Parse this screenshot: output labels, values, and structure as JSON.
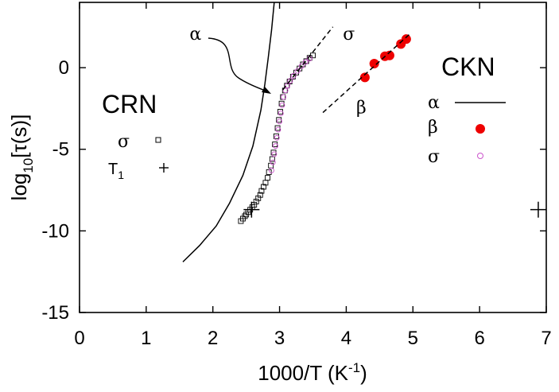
{
  "chart_data": {
    "type": "scatter",
    "xlabel_main": "1000/T (K",
    "xlabel_sup": "-1",
    "xlabel_close": ")",
    "ylabel_main": "log",
    "ylabel_sub": "10",
    "ylabel_rest": "[τ(s)]",
    "xlim": [
      0,
      7
    ],
    "ylim": [
      -15,
      4
    ],
    "xticks": [
      "0",
      "1",
      "2",
      "3",
      "4",
      "5",
      "6",
      "7"
    ],
    "yticks": [
      "0",
      "-5",
      "-10",
      "-15"
    ],
    "ytick_values": [
      0,
      -5,
      -10,
      -15
    ],
    "groups": {
      "CRN": {
        "label": "CRN",
        "legend": [
          {
            "label": "σ",
            "marker": "open-square",
            "color": "#000000"
          },
          {
            "label": "T",
            "sub": "1",
            "marker": "plus",
            "color": "#000000"
          }
        ]
      },
      "CKN": {
        "label": "CKN",
        "legend": [
          {
            "label": "α",
            "marker": "line",
            "color": "#000000"
          },
          {
            "label": "β",
            "marker": "filled-circle",
            "color": "#ee0000"
          },
          {
            "label": "σ",
            "marker": "open-circle",
            "color": "#cc55cc"
          }
        ]
      }
    },
    "annotations": [
      {
        "text": "α",
        "x": 1.65,
        "y": 1.7
      },
      {
        "text": "σ",
        "x": 3.95,
        "y": 1.7
      },
      {
        "text": "β",
        "x": 4.15,
        "y": -2.8
      }
    ],
    "series": [
      {
        "name": "CKN α",
        "kind": "line",
        "color": "#000000",
        "points": [
          [
            1.55,
            -11.9
          ],
          [
            1.8,
            -10.9
          ],
          [
            2.05,
            -9.7
          ],
          [
            2.25,
            -8.3
          ],
          [
            2.45,
            -6.6
          ],
          [
            2.6,
            -4.8
          ],
          [
            2.72,
            -2.6
          ],
          [
            2.78,
            -1.0
          ],
          [
            2.83,
            0.6
          ],
          [
            2.88,
            2.3
          ],
          [
            2.92,
            4.0
          ]
        ]
      },
      {
        "name": "CRN σ",
        "kind": "open-square",
        "color": "#000000",
        "points": [
          [
            2.42,
            -9.4
          ],
          [
            2.45,
            -9.25
          ],
          [
            2.48,
            -9.1
          ],
          [
            2.5,
            -9.0
          ],
          [
            2.53,
            -8.85
          ],
          [
            2.56,
            -8.7
          ],
          [
            2.59,
            -8.55
          ],
          [
            2.62,
            -8.4
          ],
          [
            2.65,
            -8.2
          ],
          [
            2.68,
            -8.0
          ],
          [
            2.71,
            -7.8
          ],
          [
            2.73,
            -7.55
          ],
          [
            2.76,
            -7.3
          ],
          [
            2.79,
            -7.05
          ],
          [
            2.82,
            -6.75
          ],
          [
            2.84,
            -6.4
          ],
          [
            2.87,
            -6.0
          ],
          [
            2.89,
            -5.6
          ],
          [
            2.91,
            -5.2
          ],
          [
            2.93,
            -4.7
          ],
          [
            2.95,
            -4.2
          ],
          [
            2.97,
            -3.7
          ],
          [
            2.99,
            -3.2
          ],
          [
            3.01,
            -2.7
          ],
          [
            3.03,
            -2.2
          ],
          [
            3.05,
            -1.8
          ],
          [
            3.08,
            -1.4
          ],
          [
            3.11,
            -1.1
          ],
          [
            3.15,
            -0.85
          ],
          [
            3.2,
            -0.55
          ],
          [
            3.25,
            -0.3
          ],
          [
            3.3,
            -0.05
          ],
          [
            3.35,
            0.2
          ],
          [
            3.4,
            0.4
          ],
          [
            3.45,
            0.6
          ],
          [
            3.5,
            0.75
          ]
        ]
      },
      {
        "name": "CKN σ",
        "kind": "open-circle",
        "color": "#cc55cc",
        "points": [
          [
            2.88,
            -6.3
          ],
          [
            2.9,
            -5.8
          ],
          [
            2.92,
            -5.3
          ],
          [
            2.94,
            -4.8
          ],
          [
            2.96,
            -4.3
          ],
          [
            2.98,
            -3.8
          ],
          [
            3.0,
            -3.3
          ],
          [
            3.02,
            -2.8
          ],
          [
            3.04,
            -2.3
          ],
          [
            3.06,
            -1.8
          ],
          [
            3.09,
            -1.4
          ],
          [
            3.12,
            -1.1
          ],
          [
            3.16,
            -0.8
          ],
          [
            3.21,
            -0.5
          ],
          [
            3.27,
            -0.2
          ],
          [
            3.33,
            0.1
          ],
          [
            3.39,
            0.35
          ],
          [
            3.45,
            0.55
          ]
        ]
      },
      {
        "name": "CKN β",
        "kind": "filled-circle",
        "color": "#ee0000",
        "points": [
          [
            4.28,
            -0.6
          ],
          [
            4.42,
            0.25
          ],
          [
            4.58,
            0.7
          ],
          [
            4.65,
            0.75
          ],
          [
            4.82,
            1.45
          ],
          [
            4.9,
            1.75
          ]
        ]
      },
      {
        "name": "σ fit",
        "kind": "dashed",
        "color": "#000000",
        "points": [
          [
            3.05,
            -1.35
          ],
          [
            3.8,
            2.5
          ]
        ]
      },
      {
        "name": "β fit",
        "kind": "dashed",
        "color": "#000000",
        "points": [
          [
            3.65,
            -2.75
          ],
          [
            4.95,
            2.05
          ]
        ]
      },
      {
        "name": "CRN T1",
        "kind": "plus",
        "color": "#000000",
        "points": [
          [
            2.58,
            -8.7
          ],
          [
            6.88,
            -8.7
          ]
        ]
      }
    ]
  }
}
